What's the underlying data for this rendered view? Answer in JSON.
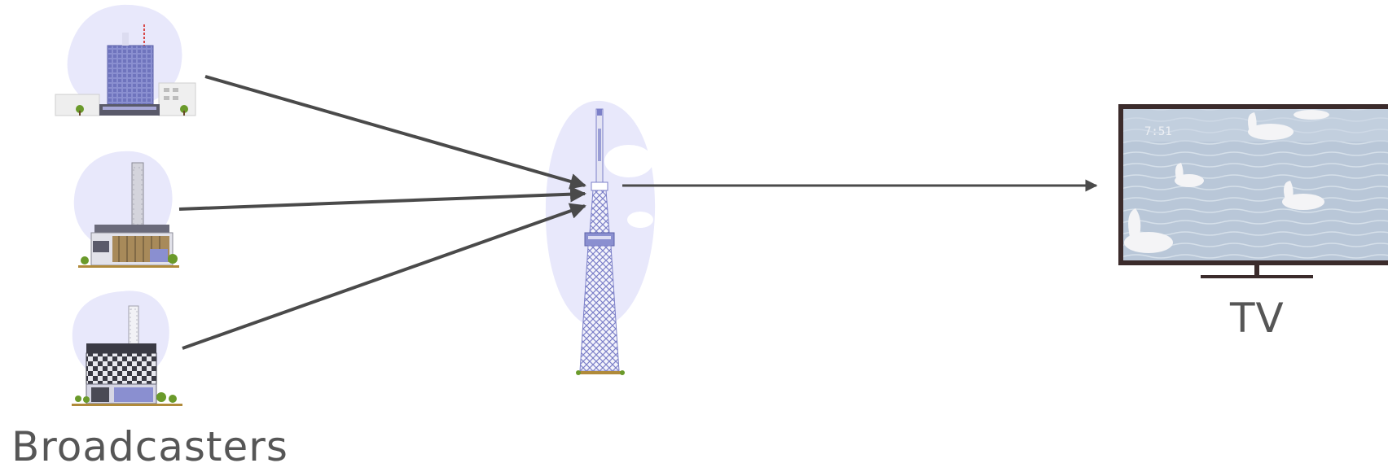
{
  "diagram": {
    "labels": {
      "broadcasters": "Broadcasters",
      "tv": "TV"
    },
    "tv_screen": {
      "clock": "7:51"
    },
    "colors": {
      "blob": "#e8e8fb",
      "building_purple": "#7a7fc4",
      "arrow": "#4a4a4a",
      "label": "#565656",
      "tv_frame": "#3b2b2b",
      "water": "#b7c6d8"
    },
    "nodes": [
      {
        "id": "broadcaster-1",
        "icon": "office-tower-icon"
      },
      {
        "id": "broadcaster-2",
        "icon": "antenna-building-icon"
      },
      {
        "id": "broadcaster-3",
        "icon": "checkered-building-icon"
      },
      {
        "id": "relay",
        "icon": "broadcast-tower-icon"
      },
      {
        "id": "receiver",
        "icon": "television-icon"
      }
    ],
    "edges": [
      {
        "from": "broadcaster-1",
        "to": "relay"
      },
      {
        "from": "broadcaster-2",
        "to": "relay"
      },
      {
        "from": "broadcaster-3",
        "to": "relay"
      },
      {
        "from": "relay",
        "to": "receiver"
      }
    ]
  }
}
